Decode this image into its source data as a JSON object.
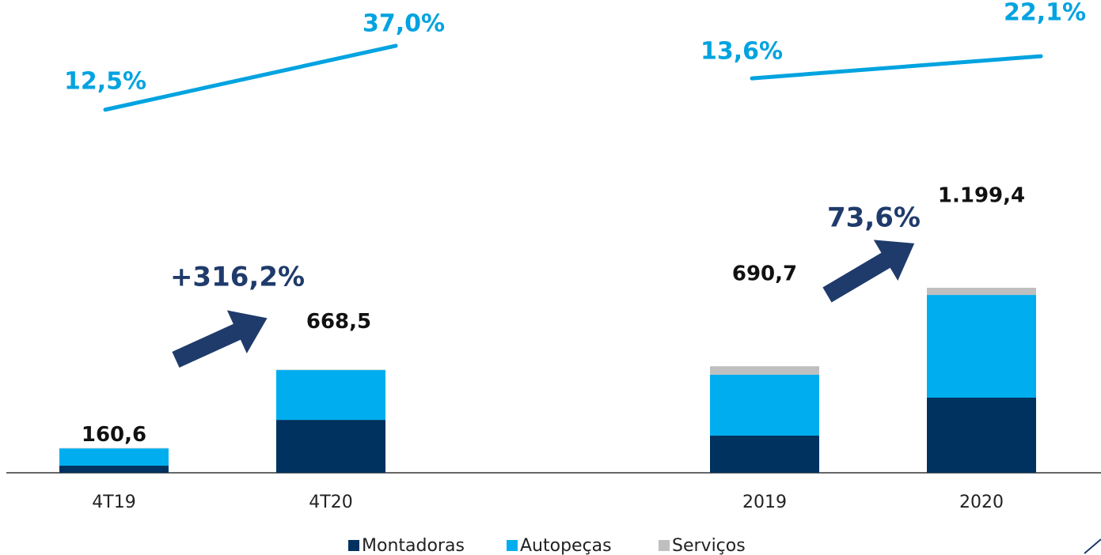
{
  "chart_data": {
    "type": "bar",
    "categories": [
      "4T19",
      "4T20",
      null,
      "2019",
      "2020"
    ],
    "series": [
      {
        "name": "Montadoras",
        "color": "#00325f",
        "values": [
          46,
          343,
          null,
          241,
          487
        ]
      },
      {
        "name": "Autopeças",
        "color": "#00aeef",
        "values": [
          112,
          323,
          null,
          395,
          666
        ]
      },
      {
        "name": "Serviços",
        "color": "#bfbfbf",
        "values": [
          2.6,
          2.5,
          null,
          54.7,
          46.4
        ]
      }
    ],
    "totals": {
      "values": [
        160.6,
        668.5,
        null,
        690.7,
        1199.4
      ],
      "value_labels": [
        "160,6",
        "668,5",
        null,
        "690,7",
        "1.199,4"
      ]
    },
    "margin": {
      "color": "#00a3e0",
      "values": [
        12.5,
        37.0,
        null,
        13.6,
        22.1
      ],
      "value_labels": [
        "12,5%",
        "37,0%",
        null,
        "13,6%",
        "22,1%"
      ]
    },
    "annotations": [
      "+316,2%",
      "73,6%"
    ],
    "legend": "bottom"
  }
}
